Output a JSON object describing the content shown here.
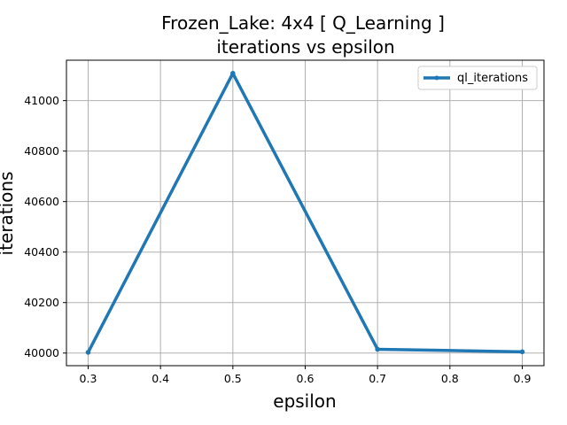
{
  "chart_data": {
    "type": "line",
    "title_line1": "Frozen_Lake: 4x4 [ Q_Learning ]",
    "title_line2": "iterations vs epsilon",
    "xlabel": "epsilon",
    "ylabel": "iterations",
    "xlim": [
      0.27,
      0.93
    ],
    "ylim": [
      39950,
      41160
    ],
    "xticks": [
      0.3,
      0.4,
      0.5,
      0.6,
      0.7,
      0.8,
      0.9
    ],
    "yticks": [
      40000,
      40200,
      40400,
      40600,
      40800,
      41000
    ],
    "grid": true,
    "legend_position": "top-right",
    "series": [
      {
        "name": "ql_iterations",
        "color": "#1f77b4",
        "x": [
          0.3,
          0.5,
          0.7,
          0.9
        ],
        "y": [
          40003,
          41108,
          40015,
          40005
        ]
      }
    ]
  }
}
